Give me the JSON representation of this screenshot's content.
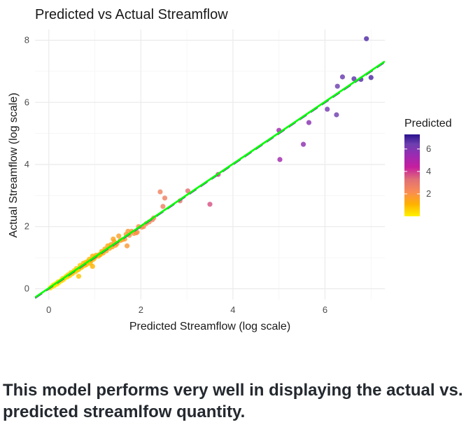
{
  "chart_data": {
    "type": "scatter",
    "title": "Predicted vs Actual Streamflow",
    "xlabel": "Predicted Streamflow (log scale)",
    "ylabel": "Actual Streamflow (log scale)",
    "xlim": [
      -0.3,
      7.3
    ],
    "ylim": [
      -0.35,
      8.35
    ],
    "x_ticks": [
      0,
      2,
      4,
      6
    ],
    "y_ticks": [
      0,
      2,
      4,
      6,
      8
    ],
    "grid": true,
    "legend": {
      "title": "Predicted",
      "position": "right",
      "labels": [
        2,
        4,
        6
      ],
      "range": [
        0,
        7.3
      ]
    },
    "colors": {
      "scale": [
        "#FFEA00",
        "#FFB000",
        "#F98C55",
        "#E06F76",
        "#C61E9E",
        "#9A2BB3",
        "#6E3FAF",
        "#3F1F9E"
      ],
      "fit_line": "#00FF00",
      "identity_line": "#6E3FA8",
      "grid": "#ebebeb"
    },
    "lines": [
      {
        "kind": "identity",
        "style": "dashed",
        "intercept": 0,
        "slope": 1
      },
      {
        "kind": "fit",
        "style": "solid",
        "intercept": 0.02,
        "slope": 1.0
      }
    ],
    "points": [
      [
        6.9,
        8.05
      ],
      [
        6.38,
        6.82
      ],
      [
        6.63,
        6.76
      ],
      [
        6.78,
        6.74
      ],
      [
        7.0,
        6.8
      ],
      [
        6.27,
        6.52
      ],
      [
        6.05,
        5.78
      ],
      [
        6.25,
        5.6
      ],
      [
        5.65,
        5.35
      ],
      [
        5.53,
        4.65
      ],
      [
        5.0,
        5.1
      ],
      [
        5.02,
        4.16
      ],
      [
        3.68,
        3.68
      ],
      [
        3.5,
        2.72
      ],
      [
        3.02,
        3.15
      ],
      [
        2.85,
        2.83
      ],
      [
        2.42,
        3.12
      ],
      [
        2.52,
        2.92
      ],
      [
        2.48,
        2.65
      ],
      [
        2.28,
        2.28
      ],
      [
        2.25,
        2.22
      ],
      [
        2.18,
        2.15
      ],
      [
        2.12,
        2.1
      ],
      [
        2.06,
        2.0
      ],
      [
        2.02,
        1.98
      ],
      [
        1.95,
        2.0
      ],
      [
        1.92,
        1.82
      ],
      [
        1.85,
        1.78
      ],
      [
        1.8,
        1.85
      ],
      [
        1.75,
        1.72
      ],
      [
        1.72,
        1.85
      ],
      [
        1.68,
        1.75
      ],
      [
        1.65,
        1.6
      ],
      [
        1.6,
        1.58
      ],
      [
        1.55,
        1.55
      ],
      [
        1.52,
        1.7
      ],
      [
        1.48,
        1.45
      ],
      [
        1.45,
        1.4
      ],
      [
        1.42,
        1.52
      ],
      [
        1.38,
        1.35
      ],
      [
        1.35,
        1.42
      ],
      [
        1.32,
        1.3
      ],
      [
        1.28,
        1.38
      ],
      [
        1.25,
        1.22
      ],
      [
        1.22,
        1.28
      ],
      [
        1.18,
        1.15
      ],
      [
        1.15,
        1.2
      ],
      [
        1.1,
        1.1
      ],
      [
        1.08,
        1.05
      ],
      [
        1.03,
        1.08
      ],
      [
        1.0,
        1.0
      ],
      [
        0.97,
        0.95
      ],
      [
        0.95,
        1.05
      ],
      [
        0.92,
        0.9
      ],
      [
        0.9,
        0.82
      ],
      [
        0.88,
        0.95
      ],
      [
        0.85,
        0.88
      ],
      [
        0.82,
        0.78
      ],
      [
        0.8,
        0.85
      ],
      [
        0.78,
        0.75
      ],
      [
        0.75,
        0.82
      ],
      [
        0.72,
        0.7
      ],
      [
        0.7,
        0.68
      ],
      [
        0.68,
        0.75
      ],
      [
        0.65,
        0.62
      ],
      [
        0.62,
        0.6
      ],
      [
        0.6,
        0.65
      ],
      [
        0.58,
        0.55
      ],
      [
        0.55,
        0.58
      ],
      [
        0.52,
        0.5
      ],
      [
        0.5,
        0.48
      ],
      [
        0.48,
        0.52
      ],
      [
        0.45,
        0.42
      ],
      [
        0.42,
        0.45
      ],
      [
        0.4,
        0.38
      ],
      [
        0.38,
        0.4
      ],
      [
        0.35,
        0.35
      ],
      [
        0.32,
        0.3
      ],
      [
        0.3,
        0.33
      ],
      [
        0.28,
        0.26
      ],
      [
        0.25,
        0.25
      ],
      [
        0.22,
        0.2
      ],
      [
        0.2,
        0.22
      ],
      [
        0.18,
        0.15
      ],
      [
        0.15,
        0.16
      ],
      [
        0.12,
        0.1
      ],
      [
        0.1,
        0.12
      ],
      [
        0.08,
        0.08
      ],
      [
        0.05,
        0.05
      ],
      [
        0.03,
        0.02
      ],
      [
        1.7,
        1.38
      ],
      [
        1.9,
        1.8
      ],
      [
        1.4,
        1.6
      ],
      [
        0.65,
        0.4
      ],
      [
        0.95,
        0.72
      ],
      [
        1.12,
        1.1
      ]
    ]
  },
  "caption": "This model performs very well in displaying the actual vs. predicted streamlfow quantity."
}
